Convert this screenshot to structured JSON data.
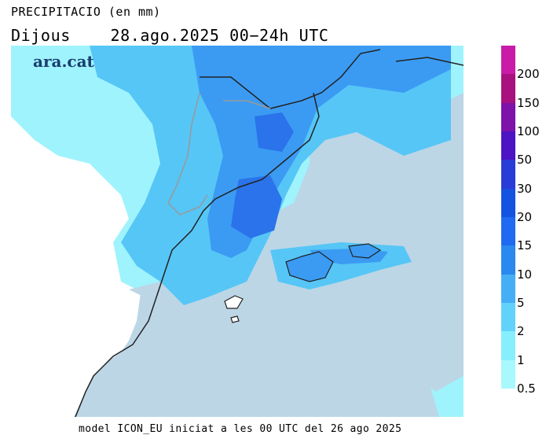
{
  "header": {
    "variable": "PRECIPITACIO (en mm)",
    "day": "Dijous",
    "period": "28.ago.2025 00−24h UTC"
  },
  "logo": "ara.cat",
  "footer": "model ICON_EU iniciat a les 00 UTC del 26 ago 2025",
  "legend": {
    "labels": [
      "200",
      "150",
      "100",
      "50",
      "30",
      "20",
      "15",
      "10",
      "5",
      "2",
      "1",
      "0.5"
    ],
    "colors": [
      "#c81ca8",
      "#a8127e",
      "#7d13a8",
      "#4d14c4",
      "#2a3cd6",
      "#1452e0",
      "#1f6af0",
      "#2a88ee",
      "#46aef5",
      "#63d2fb",
      "#86eefd",
      "#a9f8fd"
    ]
  },
  "map": {
    "colors": {
      "sea": "#bcd6e6",
      "land": "#ffffff",
      "rain_light": "#9ff3fd",
      "rain_medium": "#56c6f6",
      "rain_heavy": "#3b9bf3",
      "rain_veryheavy": "#2a73ea",
      "coast": "#222222",
      "border": "#999999"
    }
  }
}
